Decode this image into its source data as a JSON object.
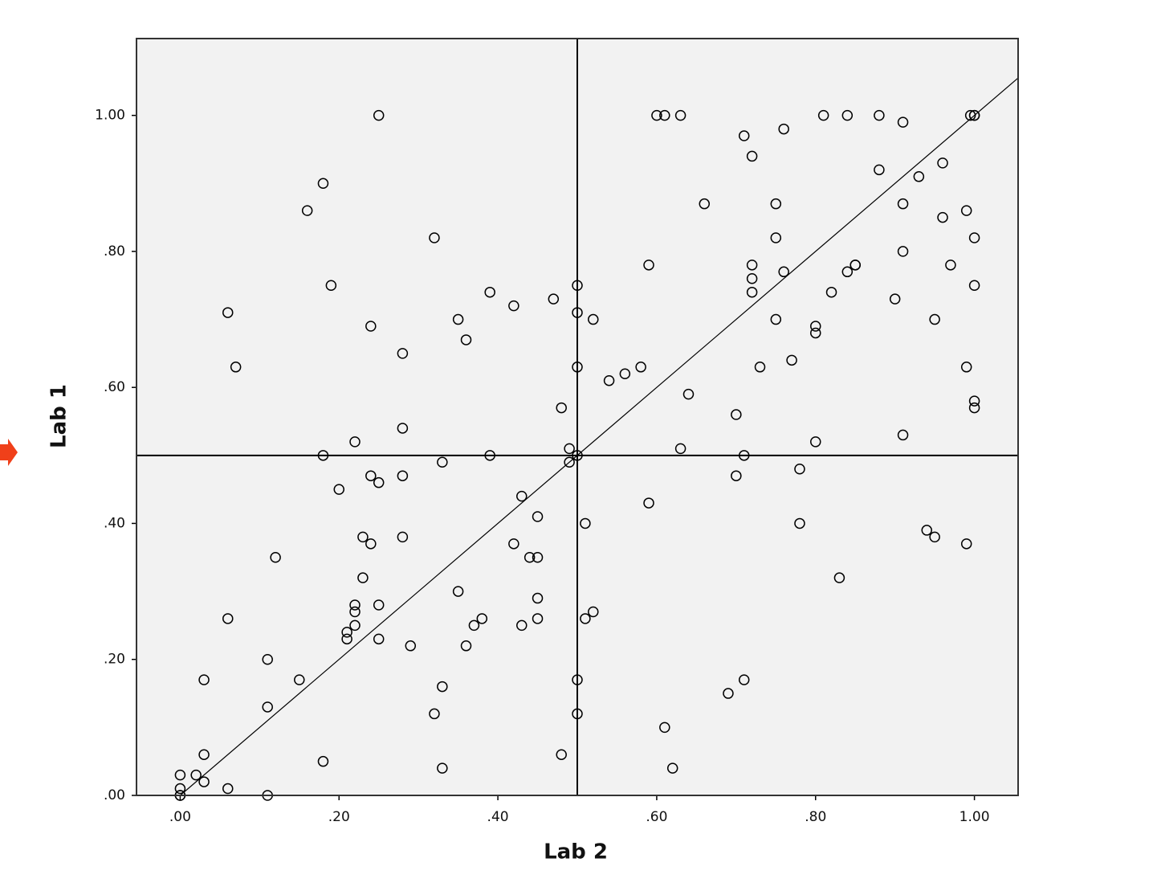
{
  "chart_data": {
    "type": "scatter",
    "x_label": "Lab 2",
    "y_label": "Lab 1",
    "xlim": [
      -0.055,
      1.055
    ],
    "ylim": [
      0,
      1.113
    ],
    "xticks": [
      {
        "value": 0,
        "label": ".00"
      },
      {
        "value": 0.2,
        "label": ".20"
      },
      {
        "value": 0.4,
        "label": ".40"
      },
      {
        "value": 0.6,
        "label": ".60"
      },
      {
        "value": 0.8,
        "label": ".80"
      },
      {
        "value": 1,
        "label": "1.00"
      }
    ],
    "yticks": [
      {
        "value": 0,
        "label": ".00"
      },
      {
        "value": 0.2,
        "label": ".20"
      },
      {
        "value": 0.4,
        "label": ".40"
      },
      {
        "value": 0.6,
        "label": ".60"
      },
      {
        "value": 0.8,
        "label": ".80"
      },
      {
        "value": 1,
        "label": "1.00"
      }
    ],
    "vline": 0.5,
    "hline": 0.5,
    "identity_line": true,
    "background": "#f2f2f2",
    "color": "#000000",
    "x": [
      0.25,
      0.18,
      0.16,
      0.32,
      0.19,
      0.06,
      0.39,
      0.42,
      0.47,
      0.5,
      0.5,
      0.52,
      0.35,
      0.24,
      0.36,
      0.28,
      0.07,
      0.5,
      0.54,
      0.56,
      0.58,
      0.48,
      0.28,
      0.22,
      0.18,
      0.33,
      0.39,
      0.49,
      0.49,
      0.5,
      0.2,
      0.24,
      0.25,
      0.28,
      0.43,
      0.45,
      0.51,
      0.59,
      0.23,
      0.28,
      0.24,
      0.42,
      0.44,
      0.45,
      0.12,
      0.23,
      0.35,
      0.45,
      0.22,
      0.25,
      0.22,
      0.52,
      0.51,
      0.38,
      0.45,
      0.06,
      0.22,
      0.37,
      0.43,
      0.21,
      0.21,
      0.25,
      0.36,
      0.29,
      0.11,
      0.03,
      0.15,
      0.33,
      0.5,
      0.11,
      0.32,
      0.5,
      0.03,
      0.18,
      0.48,
      0.0,
      0.02,
      0.03,
      0.33,
      0.06,
      0.11,
      0.0,
      0.0,
      0.0,
      0.6,
      0.61,
      0.63,
      0.71,
      0.76,
      0.81,
      0.84,
      0.88,
      0.91,
      0.995,
      1.0,
      1.0,
      0.72,
      0.88,
      0.93,
      0.96,
      0.66,
      0.75,
      0.91,
      0.99,
      0.96,
      1.0,
      0.75,
      0.91,
      0.59,
      0.72,
      0.97,
      0.85,
      0.85,
      0.84,
      0.72,
      0.76,
      1.0,
      0.72,
      0.82,
      0.9,
      0.75,
      0.95,
      0.8,
      0.8,
      0.77,
      0.73,
      0.99,
      0.64,
      1.0,
      1.0,
      0.7,
      0.91,
      0.63,
      0.8,
      0.71,
      0.7,
      0.78,
      0.78,
      0.94,
      0.95,
      0.99,
      0.83,
      0.69,
      0.71,
      0.61,
      0.62
    ],
    "values": [
      1.0,
      0.9,
      0.86,
      0.82,
      0.75,
      0.71,
      0.74,
      0.72,
      0.73,
      0.75,
      0.71,
      0.7,
      0.7,
      0.69,
      0.67,
      0.65,
      0.63,
      0.63,
      0.61,
      0.62,
      0.63,
      0.57,
      0.54,
      0.52,
      0.5,
      0.49,
      0.5,
      0.51,
      0.49,
      0.5,
      0.45,
      0.47,
      0.46,
      0.47,
      0.44,
      0.41,
      0.4,
      0.43,
      0.38,
      0.38,
      0.37,
      0.37,
      0.35,
      0.35,
      0.35,
      0.32,
      0.3,
      0.29,
      0.28,
      0.28,
      0.27,
      0.27,
      0.26,
      0.26,
      0.26,
      0.26,
      0.25,
      0.25,
      0.25,
      0.24,
      0.23,
      0.23,
      0.22,
      0.22,
      0.2,
      0.17,
      0.17,
      0.16,
      0.17,
      0.13,
      0.12,
      0.12,
      0.06,
      0.05,
      0.06,
      0.03,
      0.03,
      0.02,
      0.04,
      0.01,
      0.0,
      0.01,
      0.0,
      0.0,
      1.0,
      1.0,
      1.0,
      0.97,
      0.98,
      1.0,
      1.0,
      1.0,
      0.99,
      1.0,
      1.0,
      1.0,
      0.94,
      0.92,
      0.91,
      0.93,
      0.87,
      0.87,
      0.87,
      0.86,
      0.85,
      0.82,
      0.82,
      0.8,
      0.78,
      0.78,
      0.78,
      0.78,
      0.78,
      0.77,
      0.76,
      0.77,
      0.75,
      0.74,
      0.74,
      0.73,
      0.7,
      0.7,
      0.69,
      0.68,
      0.64,
      0.63,
      0.63,
      0.59,
      0.58,
      0.57,
      0.56,
      0.53,
      0.51,
      0.52,
      0.5,
      0.47,
      0.48,
      0.4,
      0.39,
      0.38,
      0.37,
      0.32,
      0.15,
      0.17,
      0.1,
      0.04
    ]
  }
}
